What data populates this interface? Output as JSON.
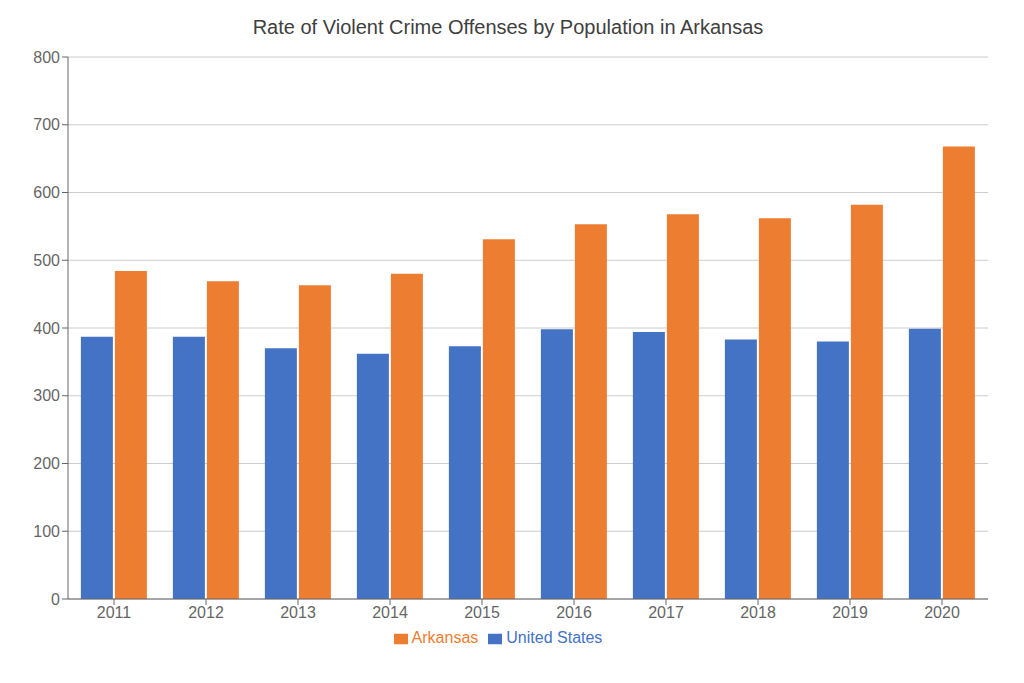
{
  "chart_data": {
    "type": "bar",
    "title": "Rate of Violent Crime Offenses by Population in Arkansas",
    "categories": [
      "2011",
      "2012",
      "2013",
      "2014",
      "2015",
      "2016",
      "2017",
      "2018",
      "2019",
      "2020"
    ],
    "series": [
      {
        "name": "United States",
        "color": "#4472c4",
        "values": [
          387,
          387,
          370,
          362,
          373,
          398,
          394,
          383,
          380,
          399
        ]
      },
      {
        "name": "Arkansas",
        "color": "#ed7d31",
        "values": [
          484,
          469,
          463,
          480,
          531,
          553,
          568,
          562,
          582,
          668
        ]
      }
    ],
    "ylim": [
      0,
      800
    ],
    "yticks": [
      0,
      100,
      200,
      300,
      400,
      500,
      600,
      700,
      800
    ],
    "grid": true,
    "legend": "bottom"
  }
}
